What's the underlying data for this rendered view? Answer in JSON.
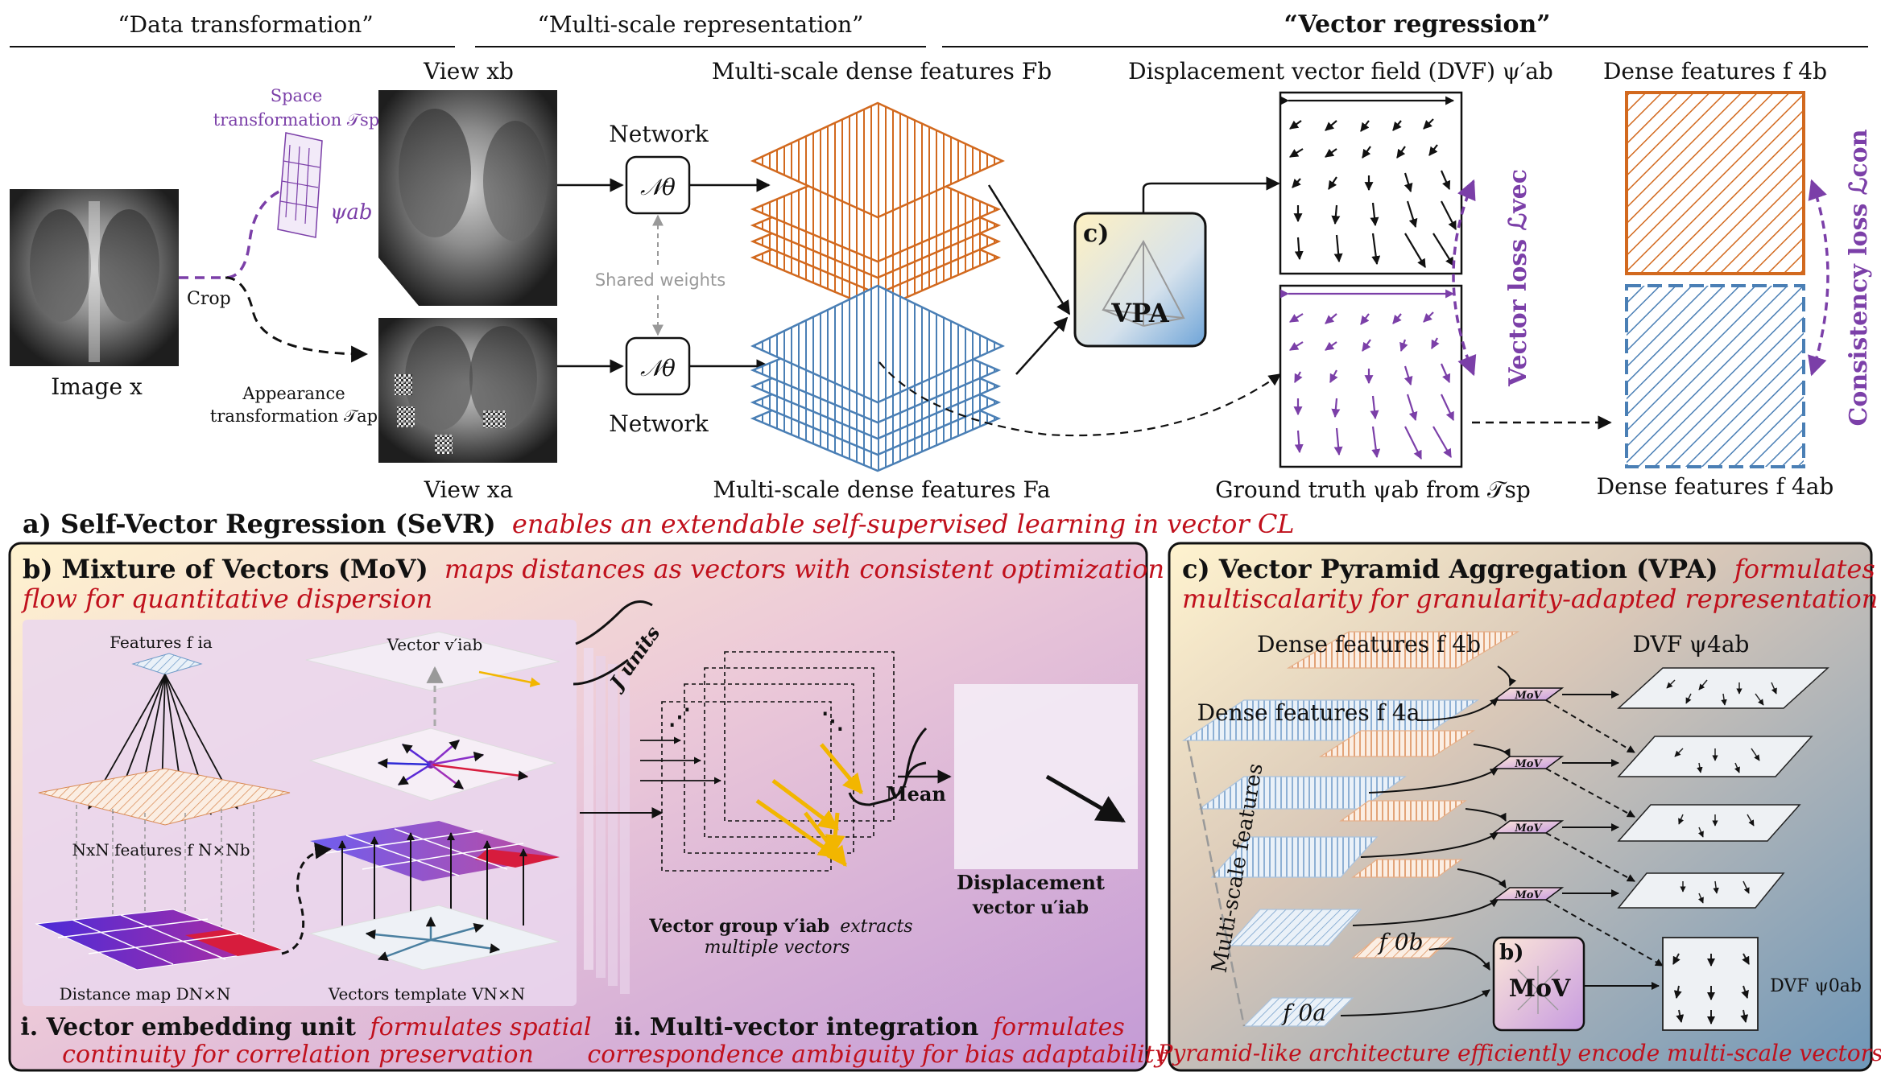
{
  "headers": {
    "data_transformation": "“Data transformation”",
    "multiscale": "“Multi-scale representation”",
    "vector_regression": "“Vector regression”"
  },
  "part_a": {
    "image_label": "Image x",
    "crop_label": "Crop",
    "space_transform_line1": "Space",
    "space_transform_line2": "transformation 𝒯sp",
    "psi_ab": "ψab",
    "appearance_line1": "Appearance",
    "appearance_line2": "transformation 𝒯ap",
    "view_xb": "View xb",
    "view_xa": "View xa",
    "network_top": "Network",
    "network_bottom": "Network",
    "n_theta": "𝒩θ",
    "shared_weights": "Shared weights",
    "features_fb": "Multi-scale dense features Fb",
    "features_fa": "Multi-scale dense features Fa",
    "vpa_tag": "c)",
    "vpa_label": "VPA",
    "dvf_label": "Displacement vector field (DVF) ψ′ab",
    "gt_label": "Ground truth ψab from 𝒯sp",
    "vector_loss": "Vector loss ℒvec",
    "consistency_loss": "Consistency loss ℒcon",
    "dense_fb": "Dense features f 4b",
    "dense_fa": "Dense features f 4ab",
    "caption_bold": "a) Self-Vector Regression (SeVR)",
    "caption_italic": "enables an extendable self-supervised learning in vector CL"
  },
  "part_b": {
    "title_bold": "b) Mixture of Vectors (MoV)",
    "title_italic_1": "maps distances as vectors with consistent optimization",
    "title_italic_2": "flow for quantitative dispersion",
    "features_fia": "Features f ia",
    "nxn_features": "NxN features f N×Nb",
    "distance_map": "Distance map DN×N",
    "vector_vab": "Vector v′iab",
    "vectors_template": "Vectors template VN×N",
    "j_units": "J units",
    "mean": "Mean",
    "displacement_line1": "Displacement",
    "displacement_line2": "vector u′iab",
    "vector_group_bold": "Vector group v′iab",
    "vector_group_italic1": "extracts",
    "vector_group_italic2": "multiple vectors",
    "sub_i_bold": "i. Vector embedding unit",
    "sub_i_italic1": "formulates spatial",
    "sub_i_italic2": "continuity for correlation preservation",
    "sub_ii_bold": "ii. Multi-vector integration",
    "sub_ii_italic1": "formulates",
    "sub_ii_italic2": "correspondence ambiguity for bias adaptability"
  },
  "part_c": {
    "title_bold": "c) Vector Pyramid Aggregation (VPA)",
    "title_italic_1": "formulates",
    "title_italic_2": "multiscalarity for granularity-adapted representation",
    "dense_fb4": "Dense features f 4b",
    "dense_fa4": "Dense features f 4a",
    "dvf_psi4": "DVF ψ4ab",
    "multiscale_features": "Multi-scale features",
    "mov": "MoV",
    "mov_tag": "b)",
    "f0b": "f 0b",
    "f0a": "f 0a",
    "dvf_psi0": "DVF ψ0ab",
    "footer": "Pyramid-like architecture efficiently encode multi-scale vectors"
  },
  "colors": {
    "orange": "#d2691e",
    "blue": "#4a7fb5",
    "purple": "#7b3fa8",
    "red_italic": "#c0101c",
    "gray": "#999999"
  }
}
